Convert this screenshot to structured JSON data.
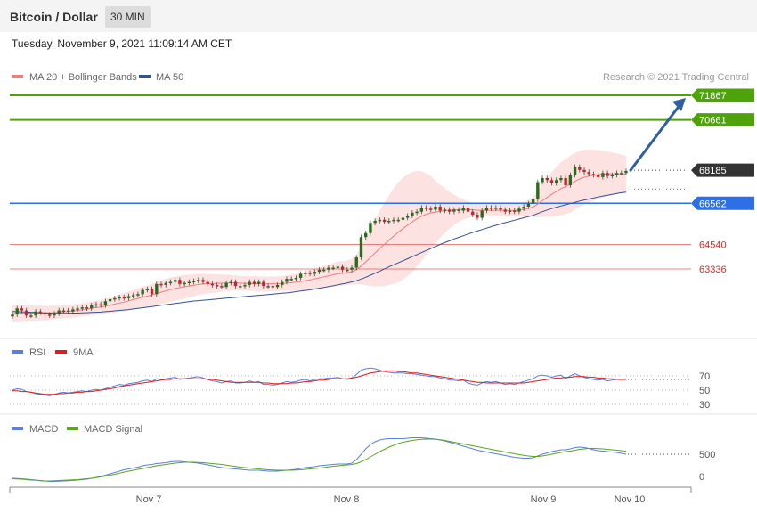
{
  "header": {
    "title": "Bitcoin / Dollar",
    "interval": "30 MIN"
  },
  "datetime": "Tuesday, November 9, 2021 11:09:14 AM CET",
  "copyright": "Research © 2021 Trading Central",
  "colors": {
    "green_level": "#4ea20a",
    "blue_level": "#2e6ee6",
    "red_level": "#e35b5b",
    "ma20": "#f07d7d",
    "ma50": "#35518f",
    "bands": "#fde2e2",
    "candle_up": "#2b6b1c",
    "candle_down": "#c0262b",
    "arrow": "#2f5f9e",
    "rsi": "#5b7fe0",
    "rsi_ma": "#d81e1e",
    "macd": "#5b7fe0",
    "macd_signal": "#5aa51d",
    "current_price": "#333333"
  },
  "chart_data": [
    {
      "type": "line",
      "panel": "price",
      "legend": [
        {
          "name": "MA 20 + Bollinger Bands",
          "color": "#f07d7d"
        },
        {
          "name": "MA 50",
          "color": "#35518f"
        }
      ],
      "ylim": [
        60800,
        72500
      ],
      "x_ticks": [
        "Nov 7",
        "Nov 8",
        "Nov 9",
        "Nov 10"
      ],
      "levels": [
        {
          "value": 71867,
          "label": "71867",
          "kind": "resistance"
        },
        {
          "value": 70661,
          "label": "70661",
          "kind": "resistance"
        },
        {
          "value": 68185,
          "label": "68185",
          "kind": "current"
        },
        {
          "value": 66562,
          "label": "66562",
          "kind": "pivot"
        },
        {
          "value": 64540,
          "label": "64540",
          "kind": "support"
        },
        {
          "value": 63336,
          "label": "63336",
          "kind": "support"
        }
      ],
      "close_series": [
        61100,
        61400,
        61300,
        61050,
        61050,
        61250,
        61200,
        61100,
        61050,
        61150,
        61300,
        61300,
        61250,
        61350,
        61400,
        61450,
        61400,
        61550,
        61600,
        61550,
        61750,
        61850,
        61900,
        61950,
        61900,
        62000,
        62050,
        62100,
        62300,
        62350,
        62100,
        62600,
        62550,
        62650,
        62700,
        62800,
        62600,
        62650,
        62700,
        62750,
        62800,
        62700,
        62600,
        62550,
        62500,
        62450,
        62650,
        62700,
        62500,
        62500,
        62550,
        62700,
        62600,
        62700,
        62500,
        62500,
        62450,
        62550,
        62700,
        62850,
        62850,
        62900,
        63100,
        63150,
        63100,
        63200,
        63300,
        63300,
        63400,
        63400,
        63450,
        63300,
        63300,
        63400,
        63900,
        64900,
        65100,
        65600,
        65700,
        65750,
        65650,
        65700,
        65750,
        65750,
        65850,
        65950,
        66100,
        66150,
        66350,
        66300,
        66250,
        66400,
        66200,
        66250,
        66150,
        66250,
        66200,
        66350,
        66150,
        66000,
        65850,
        66200,
        66350,
        66300,
        66350,
        66250,
        66150,
        66200,
        66150,
        66300,
        66400,
        66550,
        66750,
        67600,
        67800,
        67700,
        67550,
        67700,
        67800,
        67450,
        67950,
        68350,
        68200,
        68100,
        68000,
        67950,
        67850,
        68050,
        67900,
        67950,
        68050,
        68050,
        68150
      ],
      "ma20_series": [
        61150,
        61160,
        61170,
        61170,
        61170,
        61170,
        61170,
        61170,
        61180,
        61190,
        61210,
        61230,
        61250,
        61270,
        61300,
        61330,
        61360,
        61400,
        61440,
        61470,
        61510,
        61560,
        61610,
        61660,
        61710,
        61770,
        61830,
        61890,
        61950,
        62000,
        62060,
        62130,
        62200,
        62260,
        62320,
        62380,
        62420,
        62460,
        62500,
        62540,
        62570,
        62600,
        62610,
        62620,
        62630,
        62640,
        62650,
        62660,
        62650,
        62640,
        62630,
        62620,
        62620,
        62610,
        62600,
        62600,
        62610,
        62610,
        62620,
        62640,
        62660,
        62690,
        62720,
        62760,
        62800,
        62850,
        62900,
        62950,
        63000,
        63050,
        63100,
        63120,
        63150,
        63200,
        63300,
        63480,
        63680,
        63900,
        64120,
        64340,
        64550,
        64750,
        64950,
        65140,
        65320,
        65490,
        65650,
        65800,
        65930,
        66020,
        66090,
        66130,
        66170,
        66200,
        66220,
        66240,
        66250,
        66260,
        66250,
        66240,
        66220,
        66220,
        66220,
        66220,
        66220,
        66220,
        66210,
        66210,
        66210,
        66230,
        66260,
        66310,
        66380,
        66520,
        66690,
        66850,
        67000,
        67140,
        67280,
        67380,
        67500,
        67640,
        67760,
        67840,
        67900,
        67940,
        67970,
        68000,
        68010,
        68010,
        68010,
        68000,
        67990
      ],
      "ma50_series": [
        61250,
        61240,
        61230,
        61220,
        61210,
        61200,
        61190,
        61180,
        61170,
        61160,
        61160,
        61160,
        61160,
        61170,
        61170,
        61180,
        61190,
        61200,
        61210,
        61220,
        61240,
        61260,
        61280,
        61300,
        61320,
        61340,
        61370,
        61400,
        61430,
        61460,
        61490,
        61520,
        61550,
        61580,
        61610,
        61640,
        61670,
        61700,
        61730,
        61760,
        61780,
        61800,
        61820,
        61840,
        61860,
        61880,
        61900,
        61920,
        61940,
        61960,
        61980,
        62000,
        62020,
        62040,
        62060,
        62080,
        62100,
        62120,
        62140,
        62160,
        62190,
        62220,
        62250,
        62280,
        62310,
        62350,
        62390,
        62430,
        62470,
        62510,
        62560,
        62600,
        62650,
        62700,
        62760,
        62840,
        62930,
        63030,
        63130,
        63230,
        63340,
        63440,
        63540,
        63640,
        63740,
        63840,
        63940,
        64040,
        64140,
        64240,
        64340,
        64440,
        64540,
        64630,
        64720,
        64810,
        64890,
        64970,
        65050,
        65130,
        65200,
        65270,
        65340,
        65410,
        65480,
        65550,
        65610,
        65670,
        65730,
        65790,
        65850,
        65910,
        65970,
        66060,
        66150,
        66230,
        66300,
        66370,
        66430,
        66490,
        66550,
        66610,
        66670,
        66720,
        66770,
        66820,
        66870,
        66920,
        66960,
        67000,
        67040,
        67080,
        67110
      ],
      "band_halfwidth_series": [
        400,
        400,
        400,
        390,
        380,
        370,
        360,
        350,
        340,
        330,
        320,
        320,
        320,
        320,
        320,
        320,
        320,
        330,
        340,
        350,
        360,
        380,
        400,
        420,
        440,
        460,
        480,
        500,
        520,
        530,
        540,
        560,
        580,
        590,
        600,
        600,
        590,
        580,
        560,
        540,
        520,
        500,
        480,
        460,
        440,
        420,
        400,
        380,
        370,
        360,
        360,
        360,
        360,
        360,
        360,
        360,
        360,
        360,
        370,
        380,
        400,
        420,
        440,
        460,
        480,
        500,
        520,
        540,
        560,
        580,
        600,
        600,
        600,
        620,
        700,
        900,
        1150,
        1400,
        1650,
        1850,
        2050,
        2200,
        2350,
        2450,
        2500,
        2500,
        2450,
        2350,
        2200,
        2000,
        1800,
        1550,
        1300,
        1100,
        900,
        750,
        600,
        500,
        400,
        350,
        300,
        300,
        300,
        300,
        300,
        300,
        300,
        300,
        300,
        320,
        360,
        420,
        500,
        650,
        800,
        950,
        1100,
        1200,
        1300,
        1350,
        1400,
        1400,
        1380,
        1350,
        1300,
        1250,
        1200,
        1150,
        1100,
        1050,
        1000,
        950,
        900
      ]
    },
    {
      "type": "line",
      "panel": "rsi",
      "series_names": [
        "RSI",
        "9MA"
      ],
      "y_ticks": [
        70,
        50,
        30
      ],
      "ylim": [
        25,
        90
      ],
      "rsi_series": [
        50,
        52,
        51,
        48,
        47,
        45,
        44,
        43,
        42,
        44,
        46,
        47,
        46,
        47,
        48,
        49,
        48,
        50,
        51,
        50,
        52,
        54,
        56,
        58,
        57,
        59,
        60,
        61,
        63,
        64,
        62,
        66,
        65,
        66,
        67,
        68,
        65,
        66,
        67,
        68,
        69,
        67,
        65,
        63,
        62,
        60,
        62,
        63,
        60,
        60,
        61,
        63,
        61,
        62,
        58,
        58,
        57,
        58,
        60,
        62,
        61,
        62,
        64,
        65,
        63,
        65,
        66,
        66,
        67,
        67,
        68,
        66,
        65,
        67,
        72,
        78,
        80,
        81,
        80,
        78,
        76,
        75,
        74,
        74,
        74,
        73,
        73,
        72,
        71,
        70,
        69,
        69,
        67,
        66,
        64,
        64,
        63,
        64,
        60,
        58,
        57,
        60,
        62,
        61,
        62,
        60,
        58,
        59,
        58,
        60,
        62,
        64,
        66,
        70,
        71,
        70,
        68,
        70,
        71,
        66,
        70,
        73,
        70,
        68,
        66,
        65,
        64,
        65,
        63,
        64,
        65,
        65,
        65
      ],
      "rsi_ma_series": [
        49,
        49,
        48,
        48,
        47,
        46,
        45,
        44,
        44,
        44,
        45,
        45,
        46,
        46,
        47,
        47,
        48,
        48,
        49,
        50,
        51,
        52,
        53,
        55,
        56,
        57,
        58,
        59,
        60,
        61,
        62,
        63,
        64,
        65,
        65,
        66,
        66,
        66,
        66,
        66,
        66,
        66,
        65,
        65,
        64,
        63,
        62,
        61,
        61,
        61,
        61,
        61,
        61,
        61,
        60,
        60,
        59,
        59,
        59,
        59,
        60,
        60,
        61,
        62,
        62,
        63,
        64,
        64,
        65,
        66,
        66,
        66,
        66,
        67,
        68,
        70,
        72,
        74,
        75,
        76,
        77,
        77,
        77,
        76,
        76,
        75,
        74,
        74,
        73,
        72,
        71,
        70,
        69,
        68,
        67,
        66,
        65,
        64,
        63,
        62,
        61,
        61,
        60,
        60,
        60,
        60,
        60,
        60,
        60,
        60,
        60,
        61,
        62,
        63,
        64,
        65,
        66,
        67,
        67,
        68,
        68,
        69,
        69,
        69,
        68,
        68,
        67,
        67,
        66,
        66,
        65,
        65,
        65
      ]
    },
    {
      "type": "line",
      "panel": "macd",
      "series_names": [
        "MACD",
        "MACD Signal"
      ],
      "y_ticks": [
        500,
        0
      ],
      "ylim": [
        -120,
        1350
      ],
      "macd_series": [
        60,
        55,
        50,
        40,
        30,
        20,
        10,
        0,
        -10,
        -10,
        -5,
        0,
        5,
        10,
        20,
        30,
        40,
        60,
        80,
        100,
        130,
        160,
        190,
        220,
        250,
        270,
        290,
        310,
        340,
        360,
        370,
        390,
        400,
        410,
        430,
        440,
        440,
        430,
        420,
        410,
        400,
        380,
        360,
        340,
        320,
        300,
        290,
        280,
        270,
        260,
        250,
        240,
        240,
        240,
        230,
        220,
        220,
        220,
        230,
        240,
        250,
        260,
        280,
        300,
        310,
        320,
        340,
        350,
        360,
        370,
        380,
        380,
        380,
        400,
        480,
        600,
        720,
        820,
        880,
        920,
        940,
        950,
        950,
        950,
        950,
        960,
        970,
        970,
        970,
        960,
        950,
        940,
        920,
        900,
        870,
        840,
        810,
        780,
        750,
        720,
        690,
        670,
        650,
        630,
        610,
        590,
        570,
        550,
        530,
        520,
        510,
        510,
        520,
        560,
        600,
        630,
        660,
        680,
        700,
        700,
        720,
        750,
        760,
        750,
        730,
        700,
        680,
        670,
        660,
        650,
        640,
        620,
        600
      ],
      "signal_series": [
        50,
        45,
        40,
        30,
        20,
        15,
        5,
        0,
        0,
        5,
        10,
        15,
        20,
        25,
        30,
        40,
        50,
        60,
        75,
        90,
        110,
        130,
        150,
        175,
        200,
        220,
        240,
        260,
        280,
        300,
        320,
        340,
        355,
        370,
        385,
        400,
        410,
        420,
        420,
        420,
        415,
        410,
        400,
        390,
        380,
        370,
        355,
        340,
        325,
        310,
        300,
        290,
        280,
        270,
        260,
        250,
        245,
        240,
        240,
        240,
        240,
        245,
        250,
        260,
        270,
        280,
        290,
        300,
        315,
        330,
        340,
        350,
        360,
        370,
        390,
        430,
        480,
        540,
        600,
        660,
        710,
        760,
        800,
        840,
        870,
        890,
        910,
        925,
        935,
        940,
        940,
        935,
        925,
        910,
        890,
        870,
        850,
        830,
        810,
        790,
        770,
        750,
        730,
        710,
        690,
        670,
        650,
        630,
        610,
        590,
        575,
        560,
        550,
        550,
        560,
        580,
        600,
        620,
        640,
        660,
        670,
        690,
        710,
        720,
        730,
        730,
        725,
        720,
        710,
        700,
        690,
        680,
        670
      ]
    }
  ],
  "axis": {
    "x_labels": [
      "Nov 7",
      "Nov 8",
      "Nov 9",
      "Nov 10"
    ]
  }
}
